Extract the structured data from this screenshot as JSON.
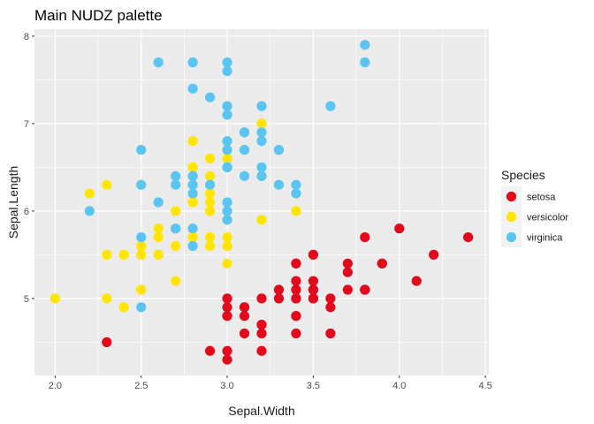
{
  "chart_data": {
    "type": "scatter",
    "title": "Main NUDZ palette",
    "xlabel": "Sepal.Width",
    "ylabel": "Sepal.Length",
    "xlim": [
      1.88,
      4.52
    ],
    "ylim": [
      4.12,
      8.08
    ],
    "x_ticks": [
      2.0,
      2.5,
      3.0,
      3.5,
      4.0,
      4.5
    ],
    "y_ticks": [
      5,
      6,
      7,
      8
    ],
    "x_tick_labels": [
      "2.0",
      "2.5",
      "3.0",
      "3.5",
      "4.0",
      "4.5"
    ],
    "y_tick_labels": [
      "5",
      "6",
      "7",
      "8"
    ],
    "grid": true,
    "legend": {
      "title": "Species",
      "position": "right"
    },
    "series": [
      {
        "name": "setosa",
        "color": "#E1091B",
        "points": [
          [
            3.5,
            5.1
          ],
          [
            3.0,
            4.9
          ],
          [
            3.2,
            4.7
          ],
          [
            3.1,
            4.6
          ],
          [
            3.6,
            5.0
          ],
          [
            3.9,
            5.4
          ],
          [
            3.4,
            4.6
          ],
          [
            3.4,
            5.0
          ],
          [
            2.9,
            4.4
          ],
          [
            3.1,
            4.9
          ],
          [
            3.7,
            5.4
          ],
          [
            3.4,
            4.8
          ],
          [
            3.0,
            4.8
          ],
          [
            3.0,
            4.3
          ],
          [
            4.0,
            5.8
          ],
          [
            4.4,
            5.7
          ],
          [
            3.9,
            5.4
          ],
          [
            3.5,
            5.1
          ],
          [
            3.8,
            5.7
          ],
          [
            3.8,
            5.1
          ],
          [
            3.4,
            5.4
          ],
          [
            3.7,
            5.1
          ],
          [
            3.6,
            4.6
          ],
          [
            3.3,
            5.1
          ],
          [
            3.4,
            4.8
          ],
          [
            3.0,
            5.0
          ],
          [
            3.4,
            5.0
          ],
          [
            3.5,
            5.2
          ],
          [
            3.4,
            5.2
          ],
          [
            3.2,
            4.7
          ],
          [
            3.1,
            4.8
          ],
          [
            3.4,
            5.4
          ],
          [
            4.1,
            5.2
          ],
          [
            4.2,
            5.5
          ],
          [
            3.1,
            4.9
          ],
          [
            3.2,
            5.0
          ],
          [
            3.5,
            5.5
          ],
          [
            3.6,
            4.9
          ],
          [
            3.0,
            4.4
          ],
          [
            3.4,
            5.1
          ],
          [
            3.5,
            5.0
          ],
          [
            2.3,
            4.5
          ],
          [
            3.2,
            4.4
          ],
          [
            3.5,
            5.0
          ],
          [
            3.8,
            5.1
          ],
          [
            3.0,
            4.8
          ],
          [
            3.8,
            5.1
          ],
          [
            3.2,
            4.6
          ],
          [
            3.7,
            5.3
          ],
          [
            3.3,
            5.0
          ]
        ]
      },
      {
        "name": "versicolor",
        "color": "#FFE500",
        "points": [
          [
            3.2,
            7.0
          ],
          [
            3.2,
            6.4
          ],
          [
            3.1,
            6.9
          ],
          [
            2.3,
            5.5
          ],
          [
            2.8,
            6.5
          ],
          [
            2.8,
            5.7
          ],
          [
            3.3,
            6.3
          ],
          [
            2.4,
            4.9
          ],
          [
            2.9,
            6.6
          ],
          [
            2.7,
            5.2
          ],
          [
            2.0,
            5.0
          ],
          [
            3.0,
            5.9
          ],
          [
            2.2,
            6.0
          ],
          [
            2.9,
            6.1
          ],
          [
            2.9,
            5.6
          ],
          [
            3.1,
            6.7
          ],
          [
            3.0,
            5.6
          ],
          [
            2.7,
            5.8
          ],
          [
            2.2,
            6.2
          ],
          [
            2.5,
            5.6
          ],
          [
            3.2,
            5.9
          ],
          [
            2.8,
            6.1
          ],
          [
            2.5,
            6.3
          ],
          [
            2.8,
            6.1
          ],
          [
            2.9,
            6.4
          ],
          [
            3.0,
            6.6
          ],
          [
            2.8,
            6.8
          ],
          [
            3.0,
            6.7
          ],
          [
            2.9,
            6.0
          ],
          [
            2.6,
            5.7
          ],
          [
            2.4,
            5.5
          ],
          [
            2.4,
            5.5
          ],
          [
            2.7,
            5.8
          ],
          [
            2.7,
            6.0
          ],
          [
            3.0,
            5.4
          ],
          [
            3.4,
            6.0
          ],
          [
            3.1,
            6.7
          ],
          [
            2.3,
            6.3
          ],
          [
            3.0,
            5.6
          ],
          [
            2.5,
            5.5
          ],
          [
            2.6,
            5.5
          ],
          [
            3.0,
            6.1
          ],
          [
            2.6,
            5.8
          ],
          [
            2.3,
            5.0
          ],
          [
            2.7,
            5.6
          ],
          [
            3.0,
            5.7
          ],
          [
            2.9,
            5.7
          ],
          [
            2.9,
            6.2
          ],
          [
            2.5,
            5.1
          ],
          [
            2.8,
            5.7
          ]
        ]
      },
      {
        "name": "virginica",
        "color": "#5BC5F2",
        "points": [
          [
            3.3,
            6.3
          ],
          [
            2.7,
            5.8
          ],
          [
            3.0,
            7.1
          ],
          [
            2.9,
            6.3
          ],
          [
            3.0,
            6.5
          ],
          [
            3.0,
            7.6
          ],
          [
            2.5,
            4.9
          ],
          [
            2.9,
            7.3
          ],
          [
            2.5,
            6.7
          ],
          [
            3.6,
            7.2
          ],
          [
            3.2,
            6.5
          ],
          [
            2.7,
            6.4
          ],
          [
            3.0,
            6.8
          ],
          [
            2.5,
            5.7
          ],
          [
            2.8,
            5.8
          ],
          [
            3.2,
            6.4
          ],
          [
            3.0,
            6.5
          ],
          [
            3.8,
            7.7
          ],
          [
            2.6,
            7.7
          ],
          [
            2.2,
            6.0
          ],
          [
            3.2,
            6.9
          ],
          [
            2.8,
            5.6
          ],
          [
            2.8,
            7.7
          ],
          [
            2.7,
            6.3
          ],
          [
            3.3,
            6.7
          ],
          [
            3.2,
            7.2
          ],
          [
            2.8,
            6.2
          ],
          [
            3.0,
            6.1
          ],
          [
            2.8,
            6.4
          ],
          [
            3.0,
            7.2
          ],
          [
            2.8,
            7.4
          ],
          [
            3.8,
            7.9
          ],
          [
            2.8,
            6.4
          ],
          [
            2.8,
            6.3
          ],
          [
            2.6,
            6.1
          ],
          [
            3.0,
            7.7
          ],
          [
            3.4,
            6.3
          ],
          [
            3.1,
            6.4
          ],
          [
            3.0,
            6.0
          ],
          [
            3.1,
            6.9
          ],
          [
            3.1,
            6.7
          ],
          [
            3.1,
            6.9
          ],
          [
            2.7,
            5.8
          ],
          [
            3.2,
            6.8
          ],
          [
            3.3,
            6.7
          ],
          [
            3.0,
            6.7
          ],
          [
            2.5,
            6.3
          ],
          [
            3.0,
            6.5
          ],
          [
            3.4,
            6.2
          ],
          [
            3.0,
            5.9
          ]
        ]
      }
    ]
  }
}
